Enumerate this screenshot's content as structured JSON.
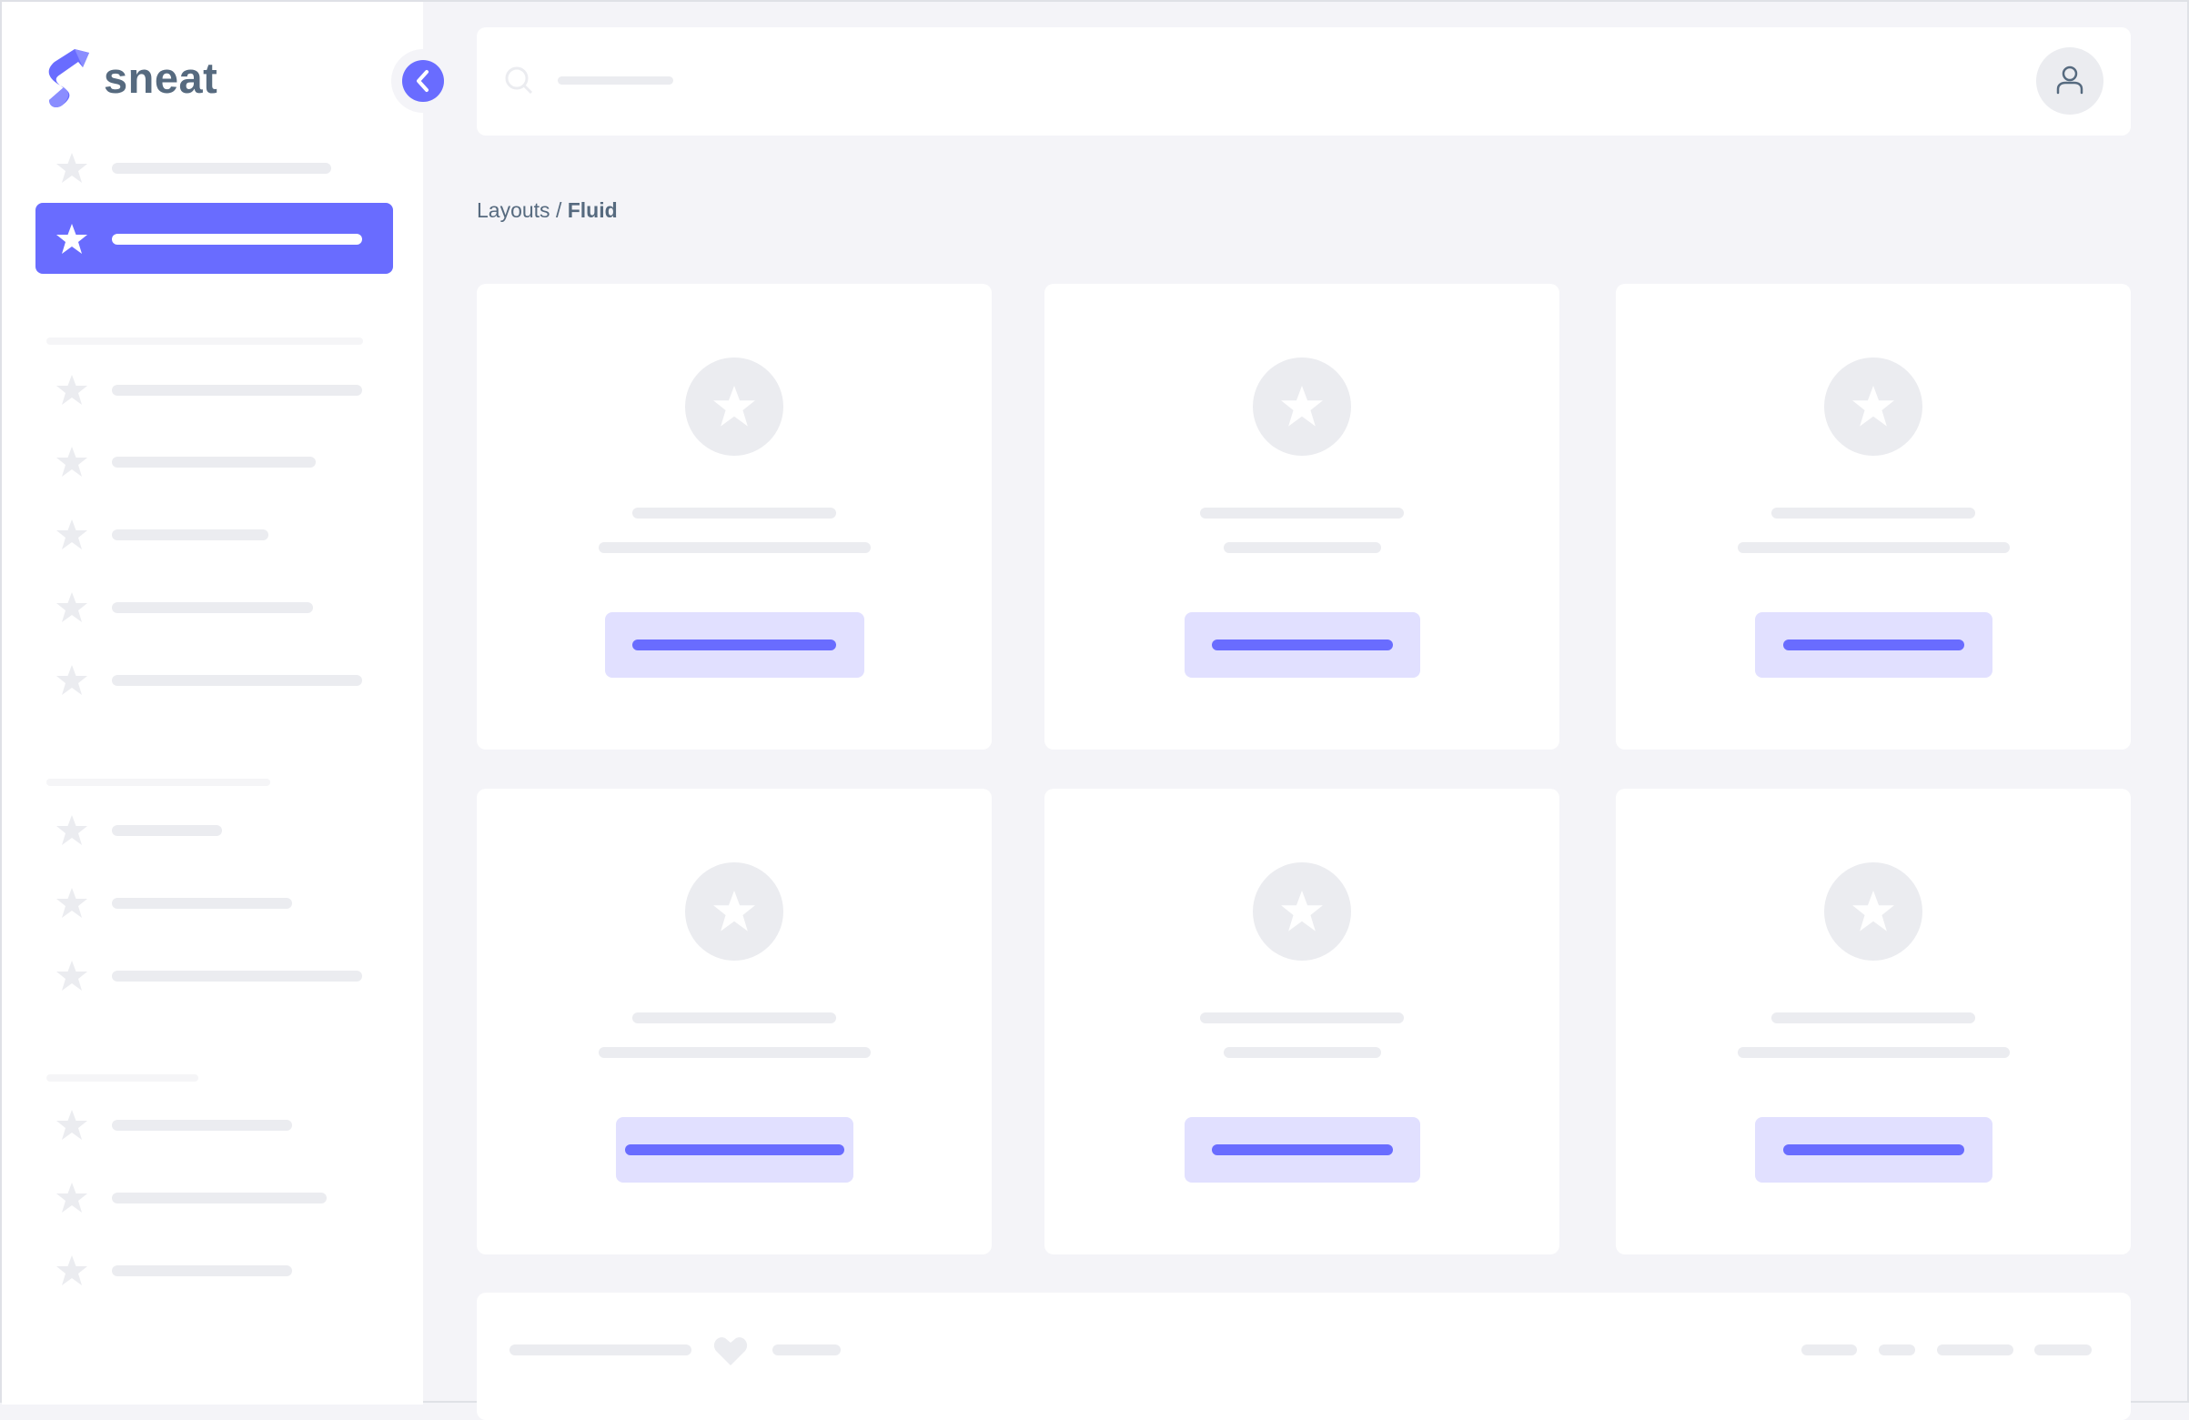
{
  "brand": {
    "name": "sneat",
    "logo_icon": "sneat-logo"
  },
  "breadcrumb": {
    "parent": "Layouts",
    "separator": " / ",
    "current": "Fluid"
  },
  "icons": {
    "menu_item": "star-icon",
    "collapse": "chevron-left-icon",
    "search": "search-icon",
    "user": "user-icon",
    "footer": "heart-icon"
  },
  "colors": {
    "primary": "#696cff",
    "primary_light": "#e1e0ff",
    "heading": "#566a7f",
    "skeleton": "#ebecf0",
    "background": "#f4f4f8"
  },
  "sidebar": {
    "active_index": 1
  }
}
